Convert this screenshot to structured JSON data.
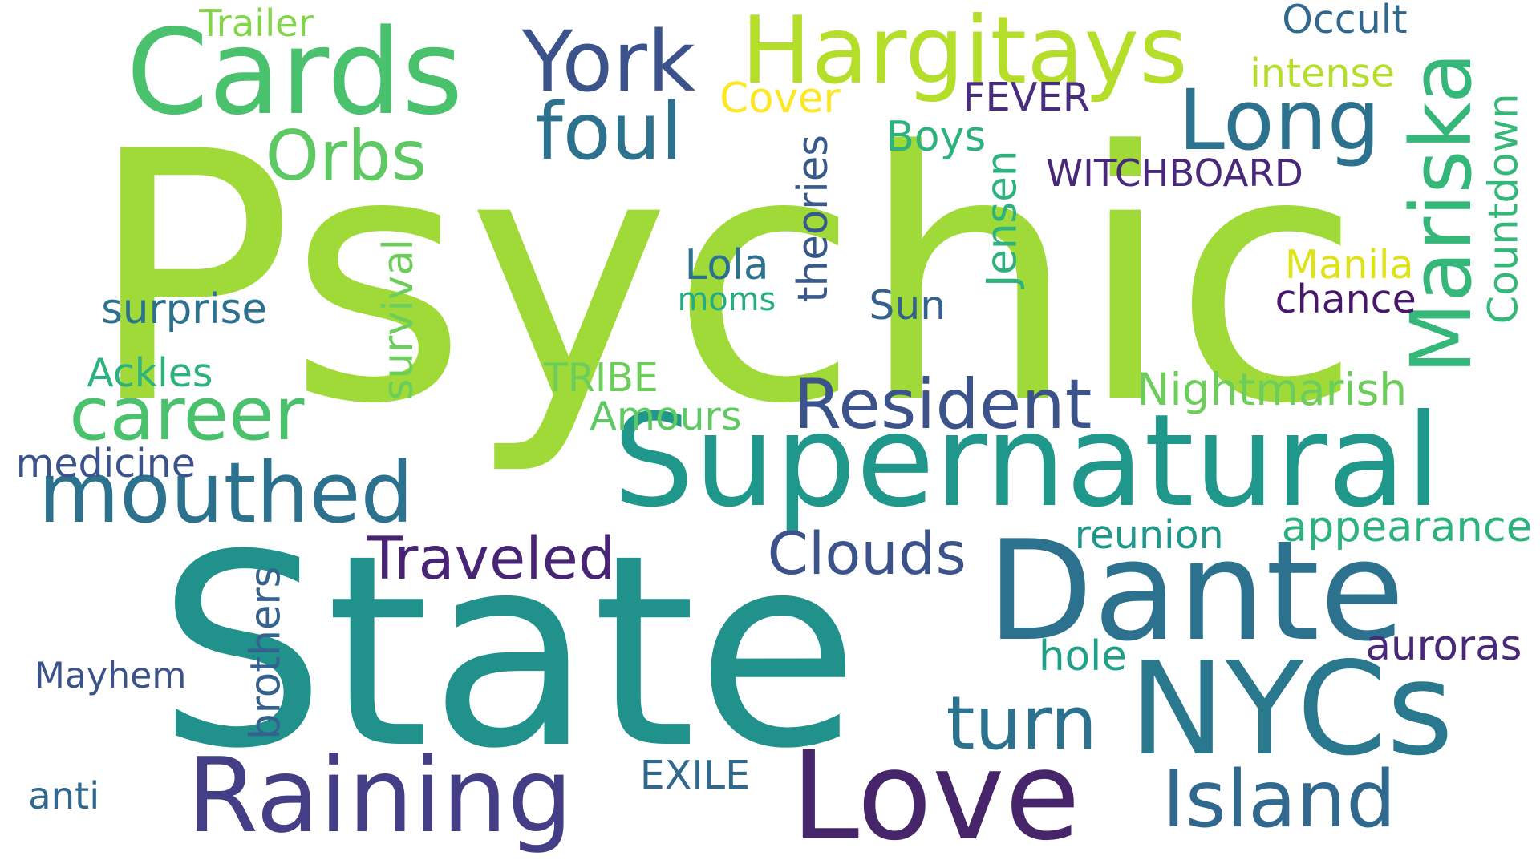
{
  "word_cloud": {
    "words": [
      {
        "text": "Psychic",
        "color": "#a0da39",
        "rotated": false
      },
      {
        "text": "State",
        "color": "#21918c",
        "rotated": false
      },
      {
        "text": "Supernatural",
        "color": "#1f988b",
        "rotated": false
      },
      {
        "text": "Dante",
        "color": "#2c728e",
        "rotated": false
      },
      {
        "text": "NYCs",
        "color": "#2a788e",
        "rotated": false
      },
      {
        "text": "Love",
        "color": "#46256a",
        "rotated": false
      },
      {
        "text": "Raining",
        "color": "#433e85",
        "rotated": false
      },
      {
        "text": "Island",
        "color": "#31688e",
        "rotated": false
      },
      {
        "text": "Cards",
        "color": "#4ac16d",
        "rotated": false
      },
      {
        "text": "Hargitays",
        "color": "#b5de2b",
        "rotated": false
      },
      {
        "text": "York",
        "color": "#3b528b",
        "rotated": false
      },
      {
        "text": "Mariska",
        "color": "#35b779",
        "rotated": true
      },
      {
        "text": "Long",
        "color": "#2c728e",
        "rotated": false
      },
      {
        "text": "foul",
        "color": "#2c728e",
        "rotated": false
      },
      {
        "text": "Resident",
        "color": "#3b528b",
        "rotated": false
      },
      {
        "text": "mouthed",
        "color": "#2c728e",
        "rotated": false
      },
      {
        "text": "turn",
        "color": "#2c728e",
        "rotated": false
      },
      {
        "text": "career",
        "color": "#4ac16d",
        "rotated": false
      },
      {
        "text": "Orbs",
        "color": "#5ec962",
        "rotated": false
      },
      {
        "text": "Traveled",
        "color": "#482475",
        "rotated": false
      },
      {
        "text": "Clouds",
        "color": "#3b528b",
        "rotated": false
      },
      {
        "text": "Nightmarish",
        "color": "#6ccd5a",
        "rotated": false
      },
      {
        "text": "appearance",
        "color": "#2db27d",
        "rotated": false
      },
      {
        "text": "WITCHBOARD",
        "color": "#482878",
        "rotated": false
      },
      {
        "text": "Occult",
        "color": "#31688e",
        "rotated": false
      },
      {
        "text": "intense",
        "color": "#b5de2b",
        "rotated": false
      },
      {
        "text": "Countdown",
        "color": "#35b779",
        "rotated": true
      },
      {
        "text": "Manila",
        "color": "#dde318",
        "rotated": false
      },
      {
        "text": "chance",
        "color": "#481769",
        "rotated": false
      },
      {
        "text": "Jensen",
        "color": "#2db27d",
        "rotated": true
      },
      {
        "text": "theories",
        "color": "#38598c",
        "rotated": true
      },
      {
        "text": "FEVER",
        "color": "#472d7b",
        "rotated": false
      },
      {
        "text": "Boys",
        "color": "#2db27d",
        "rotated": false
      },
      {
        "text": "Cover",
        "color": "#fde725",
        "rotated": false
      },
      {
        "text": "Trailer",
        "color": "#84d44b",
        "rotated": false
      },
      {
        "text": "Lola",
        "color": "#2c728e",
        "rotated": false
      },
      {
        "text": "moms",
        "color": "#25ac82",
        "rotated": false
      },
      {
        "text": "Sun",
        "color": "#34618d",
        "rotated": false
      },
      {
        "text": "surprise",
        "color": "#2c728e",
        "rotated": false
      },
      {
        "text": "survival",
        "color": "#6ccd5a",
        "rotated": true
      },
      {
        "text": "Ackles",
        "color": "#2db27d",
        "rotated": false
      },
      {
        "text": "TRIBE",
        "color": "#6ccd5a",
        "rotated": false
      },
      {
        "text": "Amours",
        "color": "#5ec962",
        "rotated": false
      },
      {
        "text": "medicine",
        "color": "#3b528b",
        "rotated": false
      },
      {
        "text": "reunion",
        "color": "#1f988b",
        "rotated": false
      },
      {
        "text": "brothers",
        "color": "#34618d",
        "rotated": true
      },
      {
        "text": "Mayhem",
        "color": "#3b528b",
        "rotated": false
      },
      {
        "text": "hole",
        "color": "#1fa187",
        "rotated": false
      },
      {
        "text": "auroras",
        "color": "#482878",
        "rotated": false
      },
      {
        "text": "EXILE",
        "color": "#31688e",
        "rotated": false
      },
      {
        "text": "anti",
        "color": "#31688e",
        "rotated": false
      }
    ]
  }
}
